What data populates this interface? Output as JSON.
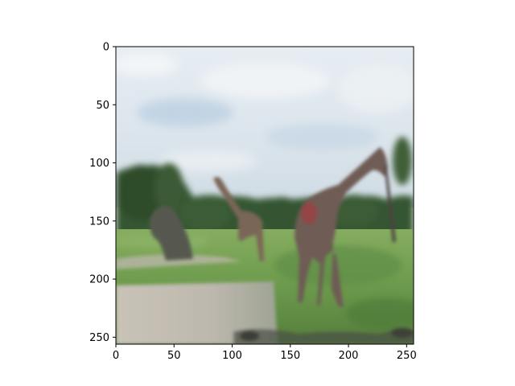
{
  "image": {
    "description_colors": {
      "sky_top": "#e9eef3",
      "sky_mid": "#d8e2ea",
      "sky_blue_patch": "#bdd0e2",
      "treeline_dark": "#2f4a2c",
      "treeline_mid": "#3f6338",
      "grass_light": "#7fa85a",
      "grass_mid": "#5f8c45",
      "grass_dark": "#4a7236",
      "path_gray": "#b7b2aa",
      "path_light": "#cfc9bf",
      "giraffe_body": "#6b5a52",
      "giraffe_dark": "#4e433f",
      "giraffe_red": "#9a3f45",
      "rock_gray": "#5a5c52",
      "axis_black": "#000000"
    }
  },
  "axes": {
    "x_ticks": [
      {
        "value": 0,
        "label": "0"
      },
      {
        "value": 50,
        "label": "50"
      },
      {
        "value": 100,
        "label": "100"
      },
      {
        "value": 150,
        "label": "150"
      },
      {
        "value": 200,
        "label": "200"
      },
      {
        "value": 250,
        "label": "250"
      }
    ],
    "y_ticks": [
      {
        "value": 0,
        "label": "0"
      },
      {
        "value": 50,
        "label": "50"
      },
      {
        "value": 100,
        "label": "100"
      },
      {
        "value": 150,
        "label": "150"
      },
      {
        "value": 200,
        "label": "200"
      },
      {
        "value": 250,
        "label": "250"
      }
    ],
    "x_range": [
      0,
      256
    ],
    "y_range": [
      0,
      256
    ]
  }
}
